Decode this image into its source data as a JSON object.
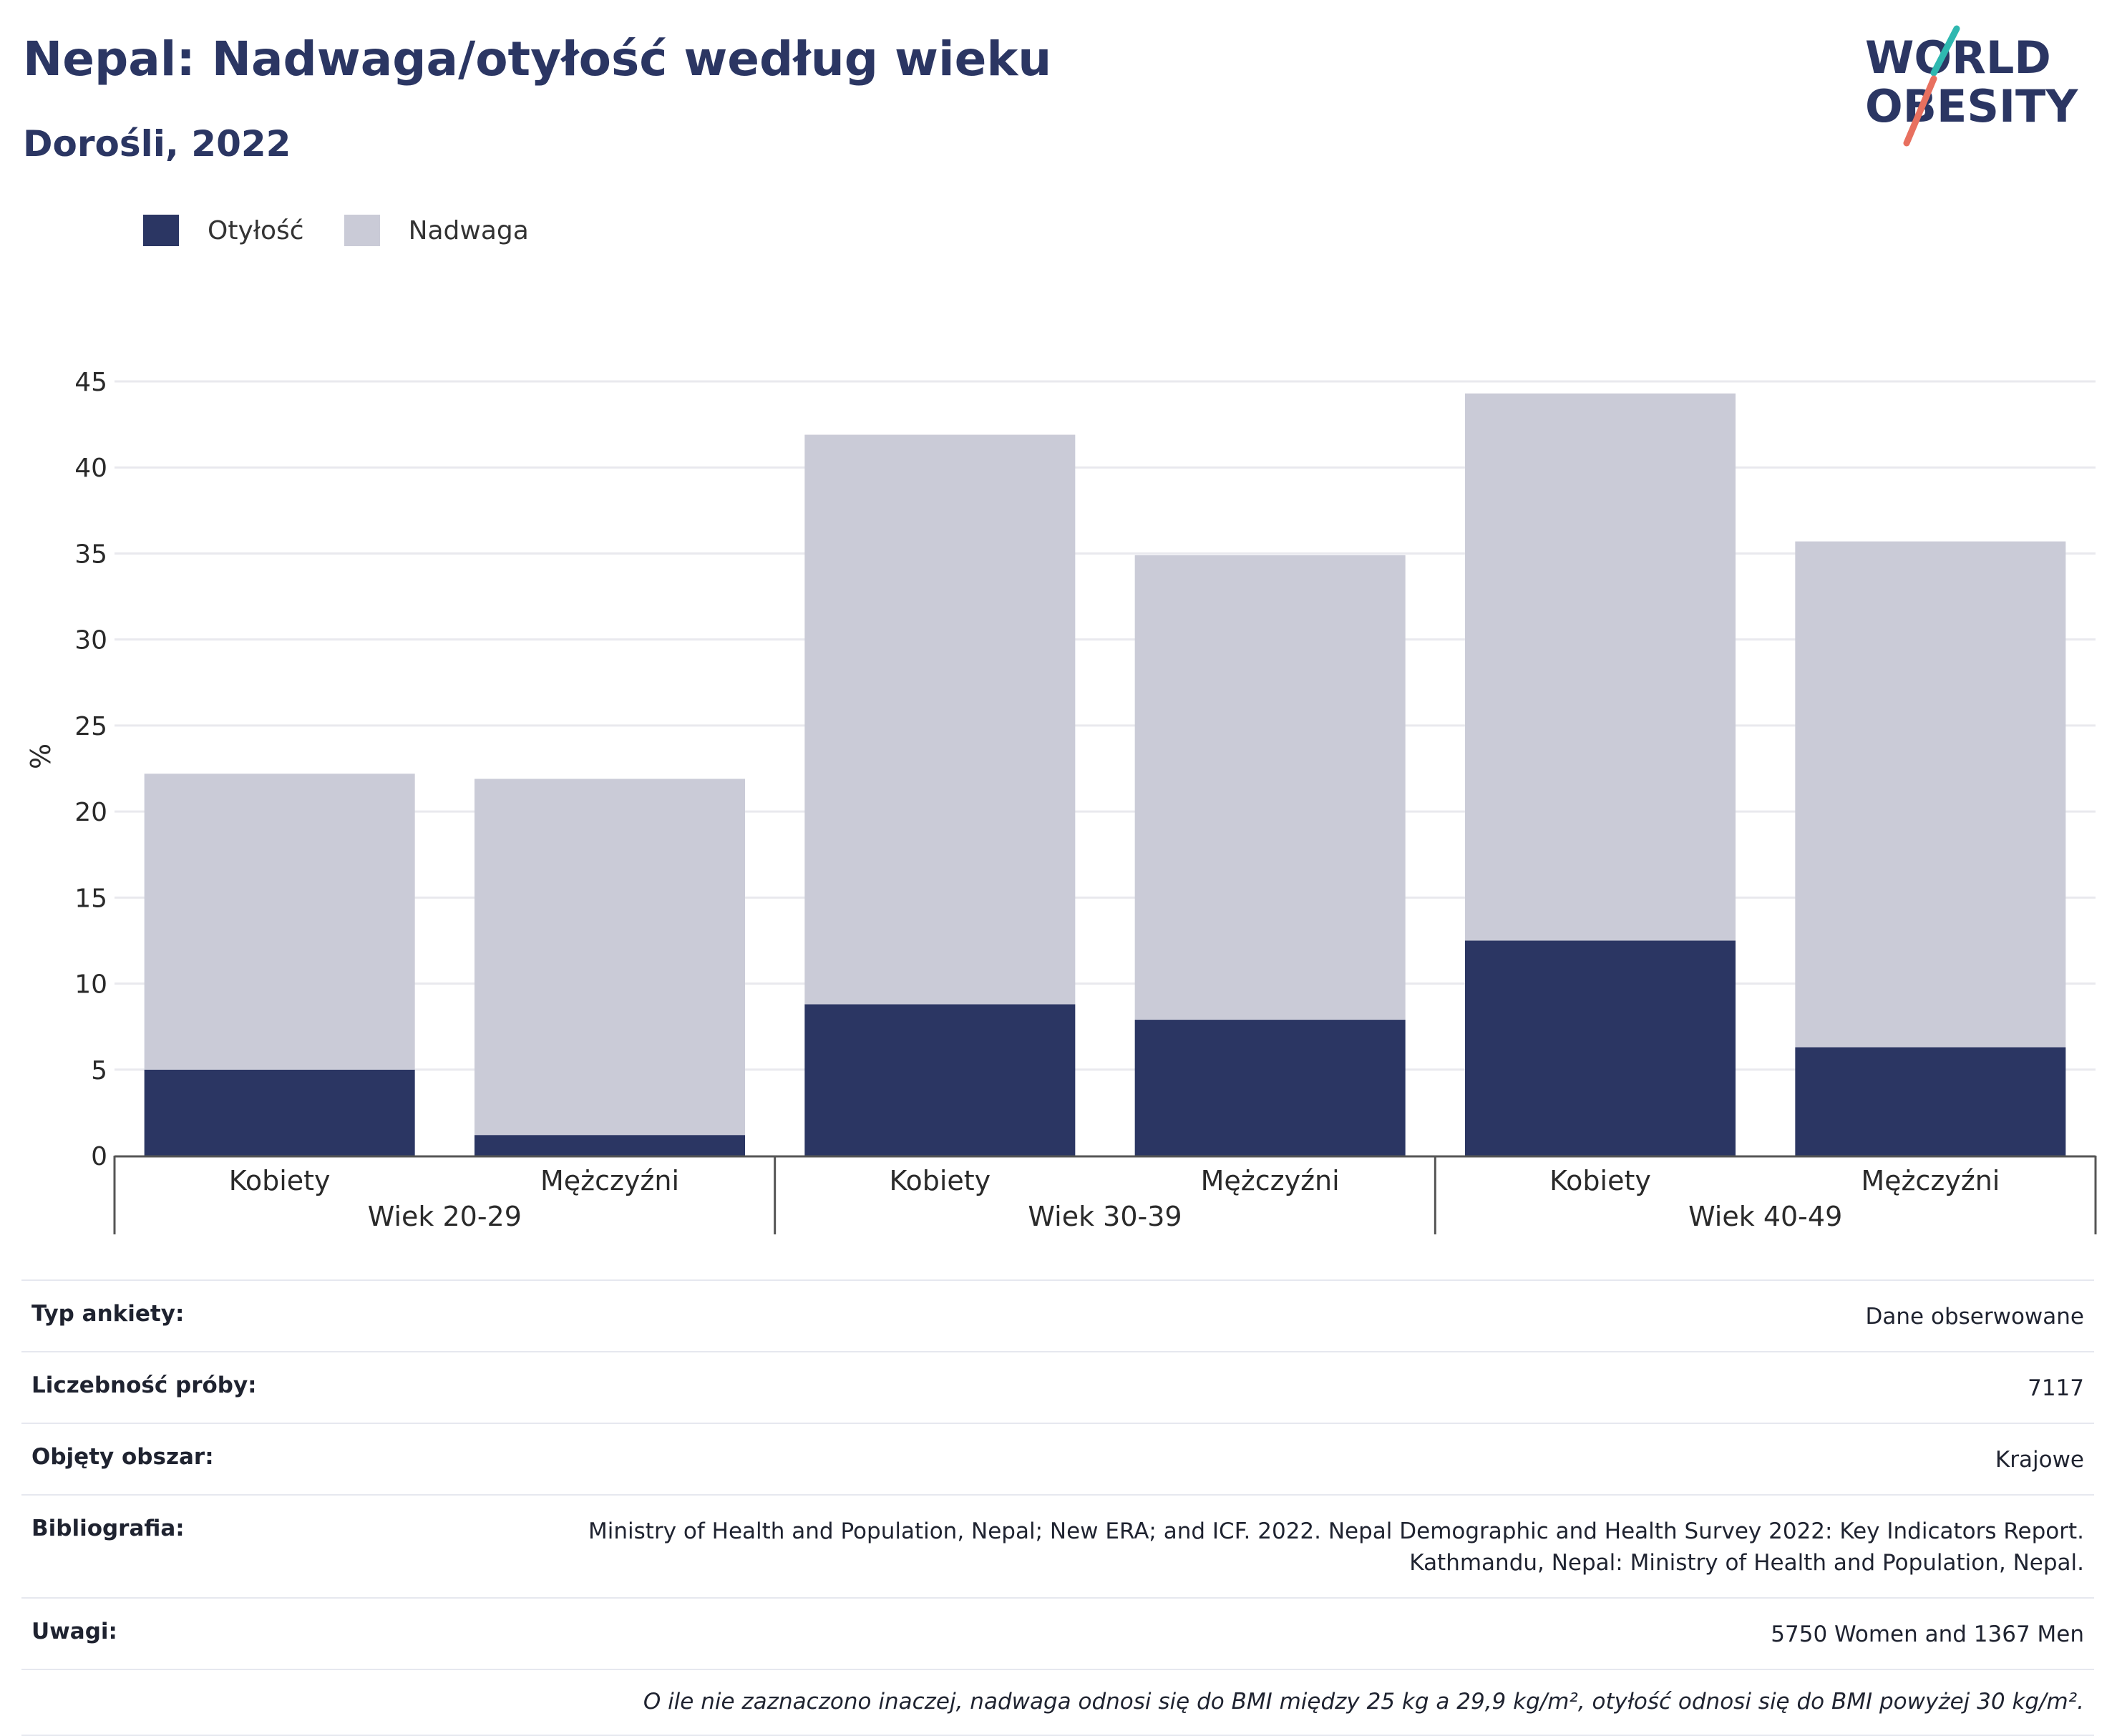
{
  "header": {
    "title": "Nepal: Nadwaga/otyłość według wieku",
    "subtitle": "Dorośli, 2022"
  },
  "logo": {
    "line1": "WORLD",
    "line2": "OBESITY",
    "accent_teal": "#2fb8b0",
    "accent_coral": "#e8705f",
    "color": "#2b3663"
  },
  "legend": [
    {
      "label": "Otyłość",
      "color": "#2b3663"
    },
    {
      "label": "Nadwaga",
      "color": "#cacbd7"
    }
  ],
  "chart_data": {
    "type": "bar",
    "stacked": true,
    "ylabel": "%",
    "ylim": [
      0,
      45
    ],
    "yticks": [
      0,
      5,
      10,
      15,
      20,
      25,
      30,
      35,
      40,
      45
    ],
    "grid": true,
    "categories": [
      "Kobiety",
      "Mężczyźni",
      "Kobiety",
      "Mężczyźni",
      "Kobiety",
      "Mężczyźni"
    ],
    "groups": [
      "Wiek 20-29",
      "Wiek 30-39",
      "Wiek 40-49"
    ],
    "series": [
      {
        "name": "Otyłość",
        "color": "#2b3663",
        "values": [
          5.0,
          1.2,
          8.8,
          7.9,
          12.5,
          6.3
        ]
      },
      {
        "name": "Nadwaga",
        "color": "#cacbd7",
        "values": [
          17.2,
          20.7,
          33.1,
          27.0,
          31.8,
          29.4
        ]
      }
    ]
  },
  "meta": {
    "rows": [
      {
        "key": "Typ ankiety:",
        "value": "Dane obserwowane"
      },
      {
        "key": "Liczebność próby:",
        "value": "7117"
      },
      {
        "key": "Objęty obszar:",
        "value": "Krajowe"
      },
      {
        "key": "Bibliografia:",
        "value_lines": [
          "Ministry of Health and Population, Nepal; New ERA; and ICF. 2022. Nepal Demographic and Health Survey 2022: Key Indicators Report.",
          "Kathmandu, Nepal: Ministry of Health and Population, Nepal."
        ]
      },
      {
        "key": "Uwagi:",
        "value": "5750 Women and 1367 Men"
      }
    ],
    "note": "O ile nie zaznaczono inaczej, nadwaga odnosi się do BMI między 25 kg a 29,9 kg/m², otyłość odnosi się do BMI powyżej 30 kg/m²."
  }
}
